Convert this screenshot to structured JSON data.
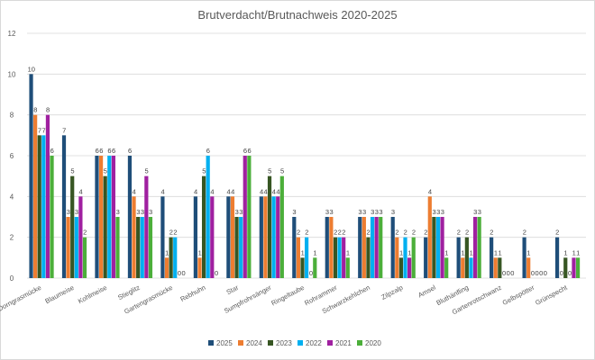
{
  "chart_data": {
    "type": "bar",
    "title": "Brutverdacht/Brutnachweis 2020-2025",
    "xlabel": "",
    "ylabel": "",
    "ylim": [
      0,
      12
    ],
    "yticks": [
      0,
      2,
      4,
      6,
      8,
      10,
      12
    ],
    "grid": true,
    "legend_position": "bottom",
    "data_labels": true,
    "categories": [
      "Dorngrasmücke",
      "Blaumeise",
      "Kohlmeise",
      "Stieglitz",
      "Gartengrasmücke",
      "Rebhuhn",
      "Star",
      "Sumpfrohrsänger",
      "Ringeltaube",
      "Rohrammer",
      "Schwarzkehlchen",
      "Zilpzalp",
      "Amsel",
      "Bluthänfling",
      "Gartenrotschwanz",
      "Gelbspötter",
      "Grünspecht"
    ],
    "series": [
      {
        "name": "2025",
        "color": "#1f4e79",
        "values": [
          10,
          7,
          6,
          6,
          4,
          4,
          4,
          4,
          3,
          3,
          3,
          3,
          2,
          2,
          2,
          2,
          2
        ]
      },
      {
        "name": "2024",
        "color": "#ed7d31",
        "values": [
          8,
          3,
          6,
          4,
          1,
          1,
          4,
          4,
          2,
          3,
          3,
          2,
          4,
          1,
          1,
          1,
          0
        ]
      },
      {
        "name": "2023",
        "color": "#375623",
        "values": [
          7,
          5,
          5,
          3,
          2,
          5,
          3,
          5,
          1,
          2,
          2,
          1,
          3,
          2,
          1,
          0,
          1
        ]
      },
      {
        "name": "2022",
        "color": "#00b0f0",
        "values": [
          7,
          3,
          6,
          3,
          2,
          6,
          3,
          4,
          2,
          2,
          3,
          2,
          3,
          1,
          0,
          0,
          0
        ]
      },
      {
        "name": "2021",
        "color": "#a020a0",
        "values": [
          8,
          4,
          6,
          5,
          0,
          4,
          6,
          4,
          0,
          2,
          3,
          1,
          3,
          3,
          0,
          0,
          1
        ]
      },
      {
        "name": "2020",
        "color": "#4caf3a",
        "values": [
          6,
          2,
          3,
          3,
          0,
          0,
          6,
          5,
          1,
          1,
          3,
          2,
          1,
          3,
          0,
          0,
          1
        ]
      }
    ]
  }
}
